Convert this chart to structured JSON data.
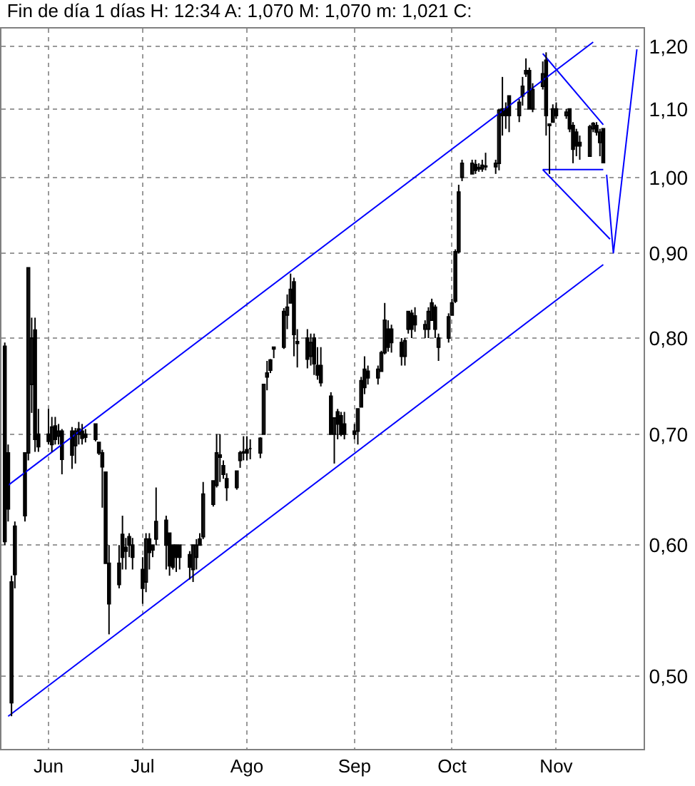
{
  "chart_data": {
    "type": "candlestick",
    "title": "Fin de día 1 días H: 12:34 A: 1,070 M: 1,070 m: 1,021 C:",
    "color": "#000000",
    "x": [
      "--05-21",
      "--05-22",
      "--05-23",
      "--05-24",
      "--05-27",
      "--05-28",
      "--05-29",
      "--05-30",
      "--05-31",
      "--06-03",
      "--06-04",
      "--06-05",
      "--06-06",
      "--06-07",
      "--06-10",
      "--06-11",
      "--06-12",
      "--06-13",
      "--06-14",
      "--06-17",
      "--06-18",
      "--06-19",
      "--06-20",
      "--06-21",
      "--06-24",
      "--06-25",
      "--06-26",
      "--06-27",
      "--06-28",
      "--07-01",
      "--07-02",
      "--07-03",
      "--07-04",
      "--07-05",
      "--07-08",
      "--07-09",
      "--07-10",
      "--07-11",
      "--07-12",
      "--07-15",
      "--07-16",
      "--07-17",
      "--07-18",
      "--07-19",
      "--07-22",
      "--07-23",
      "--07-24",
      "--07-25",
      "--07-26",
      "--07-29",
      "--07-30",
      "--07-31",
      "--08-01",
      "--08-02",
      "--08-05",
      "--08-06",
      "--08-07",
      "--08-08",
      "--08-09",
      "--08-12",
      "--08-13",
      "--08-14",
      "--08-15",
      "--08-16",
      "--08-19",
      "--08-20",
      "--08-21",
      "--08-22",
      "--08-23",
      "--08-26",
      "--08-27",
      "--08-28",
      "--08-29",
      "--08-30",
      "--09-02",
      "--09-03",
      "--09-04",
      "--09-05",
      "--09-06",
      "--09-09",
      "--09-10",
      "--09-11",
      "--09-12",
      "--09-13",
      "--09-16",
      "--09-17",
      "--09-18",
      "--09-19",
      "--09-20",
      "--09-23",
      "--09-24",
      "--09-25",
      "--09-26",
      "--09-27",
      "--09-30",
      "--10-01",
      "--10-02",
      "--10-03",
      "--10-04",
      "--10-07",
      "--10-08",
      "--10-09",
      "--10-10",
      "--10-11",
      "--10-14",
      "--10-15",
      "--10-16",
      "--10-17",
      "--10-18",
      "--10-21",
      "--10-22",
      "--10-23",
      "--10-24",
      "--10-25",
      "--10-28",
      "--10-29",
      "--10-30",
      "--10-31",
      "--11-01",
      "--11-04",
      "--11-05",
      "--11-06",
      "--11-07",
      "--11-08",
      "--11-11",
      "--11-12",
      "--11-13",
      "--11-14",
      "--11-15"
    ],
    "ohlc": [
      [
        0.791,
        0.795,
        0.6,
        0.603
      ],
      [
        0.682,
        0.69,
        0.62,
        0.631
      ],
      [
        0.482,
        0.575,
        0.473,
        0.57
      ],
      [
        0.576,
        0.62,
        0.565,
        0.616
      ],
      [
        0.625,
        0.682,
        0.62,
        0.682
      ],
      [
        0.682,
        0.882,
        0.675,
        0.882
      ],
      [
        0.75,
        0.823,
        0.721,
        0.8
      ],
      [
        0.809,
        0.823,
        0.683,
        0.695
      ],
      [
        0.7,
        0.725,
        0.683,
        0.688
      ],
      [
        0.7,
        0.725,
        0.69,
        0.693
      ],
      [
        0.69,
        0.717,
        0.683,
        0.707
      ],
      [
        0.708,
        0.717,
        0.69,
        0.695
      ],
      [
        0.698,
        0.71,
        0.69,
        0.703
      ],
      [
        0.703,
        0.705,
        0.662,
        0.676
      ],
      [
        0.68,
        0.707,
        0.667,
        0.703
      ],
      [
        0.689,
        0.706,
        0.672,
        0.703
      ],
      [
        0.705,
        0.712,
        0.69,
        0.7
      ],
      [
        0.696,
        0.71,
        0.69,
        0.703
      ],
      [
        0.7,
        0.705,
        0.692,
        0.697
      ],
      [
        0.695,
        0.71,
        0.693,
        0.71
      ],
      [
        0.692,
        0.692,
        0.68,
        0.682
      ],
      [
        0.682,
        0.685,
        0.632,
        0.669
      ],
      [
        0.664,
        0.664,
        0.585,
        0.585
      ],
      [
        0.585,
        0.6,
        0.53,
        0.553
      ],
      [
        0.568,
        0.6,
        0.565,
        0.585
      ],
      [
        0.609,
        0.625,
        0.58,
        0.59
      ],
      [
        0.598,
        0.606,
        0.58,
        0.595
      ],
      [
        0.607,
        0.61,
        0.59,
        0.6
      ],
      [
        0.6,
        0.606,
        0.58,
        0.59
      ],
      [
        0.58,
        0.59,
        0.553,
        0.565
      ],
      [
        0.57,
        0.61,
        0.562,
        0.605
      ],
      [
        0.605,
        0.61,
        0.58,
        0.594
      ],
      [
        0.596,
        0.6,
        0.59,
        0.6
      ],
      [
        0.605,
        0.65,
        0.6,
        0.62
      ],
      [
        0.621,
        0.625,
        0.58,
        0.6
      ],
      [
        0.61,
        0.61,
        0.575,
        0.583
      ],
      [
        0.6,
        0.6,
        0.58,
        0.582
      ],
      [
        0.59,
        0.6,
        0.578,
        0.6
      ],
      [
        0.6,
        0.6,
        0.58,
        0.59
      ],
      [
        0.592,
        0.595,
        0.572,
        0.582
      ],
      [
        0.58,
        0.6,
        0.57,
        0.6
      ],
      [
        0.59,
        0.605,
        0.58,
        0.6
      ],
      [
        0.6,
        0.61,
        0.6,
        0.605
      ],
      [
        0.607,
        0.655,
        0.605,
        0.644
      ],
      [
        0.635,
        0.656,
        0.633,
        0.656
      ],
      [
        0.652,
        0.7,
        0.65,
        0.682
      ],
      [
        0.68,
        0.7,
        0.655,
        0.678
      ],
      [
        0.67,
        0.675,
        0.658,
        0.662
      ],
      [
        0.658,
        0.663,
        0.638,
        0.65
      ],
      [
        0.65,
        0.665,
        0.648,
        0.665
      ],
      [
        0.675,
        0.684,
        0.668,
        0.682
      ],
      [
        0.682,
        0.698,
        0.675,
        0.683
      ],
      [
        0.685,
        0.698,
        0.675,
        0.682
      ],
      [
        0.686,
        0.695,
        0.676,
        0.686
      ],
      [
        0.682,
        0.697,
        0.677,
        0.696
      ],
      [
        0.7,
        0.75,
        0.7,
        0.75
      ],
      [
        0.758,
        0.775,
        0.744,
        0.762
      ],
      [
        0.765,
        0.777,
        0.762,
        0.776
      ],
      [
        0.788,
        0.79,
        0.778,
        0.79
      ],
      [
        0.79,
        0.834,
        0.788,
        0.83
      ],
      [
        0.826,
        0.85,
        0.81,
        0.835
      ],
      [
        0.84,
        0.875,
        0.84,
        0.856
      ],
      [
        0.865,
        0.87,
        0.78,
        0.804
      ],
      [
        0.794,
        0.81,
        0.768,
        0.796
      ],
      [
        0.8,
        0.81,
        0.767,
        0.777
      ],
      [
        0.78,
        0.805,
        0.77,
        0.795
      ],
      [
        0.8,
        0.805,
        0.76,
        0.772
      ],
      [
        0.77,
        0.79,
        0.755,
        0.76
      ],
      [
        0.77,
        0.79,
        0.748,
        0.752
      ],
      [
        0.738,
        0.742,
        0.7,
        0.7
      ],
      [
        0.7,
        0.716,
        0.672,
        0.716
      ],
      [
        0.722,
        0.725,
        0.695,
        0.71
      ],
      [
        0.718,
        0.722,
        0.698,
        0.7
      ],
      [
        0.71,
        0.722,
        0.695,
        0.7
      ],
      [
        0.703,
        0.71,
        0.695,
        0.7
      ],
      [
        0.703,
        0.725,
        0.69,
        0.725
      ],
      [
        0.727,
        0.758,
        0.727,
        0.754
      ],
      [
        0.747,
        0.78,
        0.74,
        0.766
      ],
      [
        0.764,
        0.77,
        0.75,
        0.757
      ],
      [
        0.757,
        0.77,
        0.75,
        0.766
      ],
      [
        0.764,
        0.786,
        0.764,
        0.784
      ],
      [
        0.784,
        0.84,
        0.782,
        0.82
      ],
      [
        0.81,
        0.82,
        0.785,
        0.79
      ],
      [
        0.81,
        0.815,
        0.784,
        0.795
      ],
      [
        0.795,
        0.8,
        0.77,
        0.78
      ],
      [
        0.78,
        0.8,
        0.77,
        0.797
      ],
      [
        0.81,
        0.83,
        0.805,
        0.83
      ],
      [
        0.828,
        0.832,
        0.8,
        0.81
      ],
      [
        0.825,
        0.835,
        0.807,
        0.815
      ],
      [
        0.81,
        0.82,
        0.8,
        0.815
      ],
      [
        0.81,
        0.835,
        0.8,
        0.83
      ],
      [
        0.82,
        0.845,
        0.82,
        0.84
      ],
      [
        0.835,
        0.838,
        0.8,
        0.81
      ],
      [
        0.79,
        0.805,
        0.775,
        0.8
      ],
      [
        0.8,
        0.828,
        0.795,
        0.824
      ],
      [
        0.826,
        0.845,
        0.826,
        0.84
      ],
      [
        0.842,
        0.905,
        0.84,
        0.902
      ],
      [
        0.902,
        0.99,
        0.9,
        0.98
      ],
      [
        1.0,
        1.025,
        0.995,
        1.02
      ],
      [
        1.005,
        1.025,
        1.005,
        1.02
      ],
      [
        1.018,
        1.025,
        1.005,
        1.01
      ],
      [
        1.012,
        1.02,
        1.008,
        1.014
      ],
      [
        1.012,
        1.025,
        1.008,
        1.017
      ],
      [
        1.015,
        1.035,
        1.01,
        1.016
      ],
      [
        1.015,
        1.025,
        1.005,
        1.02
      ],
      [
        1.02,
        1.1,
        1.01,
        1.098
      ],
      [
        1.09,
        1.15,
        1.06,
        1.1
      ],
      [
        1.1,
        1.11,
        1.07,
        1.09
      ],
      [
        1.12,
        1.12,
        1.065,
        1.09
      ],
      [
        1.09,
        1.115,
        1.08,
        1.11
      ],
      [
        1.12,
        1.15,
        1.105,
        1.135
      ],
      [
        1.155,
        1.18,
        1.15,
        1.16
      ],
      [
        1.16,
        1.165,
        1.1,
        1.1
      ],
      [
        1.1,
        1.14,
        1.095,
        1.13
      ],
      [
        1.135,
        1.175,
        1.13,
        1.155
      ],
      [
        1.177,
        1.19,
        1.06,
        1.09
      ],
      [
        1.077,
        1.077,
        1.005,
        1.075
      ],
      [
        1.08,
        1.107,
        1.08,
        1.1
      ],
      [
        1.1,
        1.11,
        1.085,
        1.09
      ],
      [
        1.09,
        1.1,
        1.085,
        1.095
      ],
      [
        1.1,
        1.1,
        1.065,
        1.07
      ],
      [
        1.075,
        1.08,
        1.02,
        1.04
      ],
      [
        1.065,
        1.07,
        1.03,
        1.045
      ],
      [
        1.05,
        1.06,
        1.025,
        1.045
      ],
      [
        1.03,
        1.076,
        1.03,
        1.073
      ],
      [
        1.07,
        1.08,
        1.065,
        1.078
      ],
      [
        1.075,
        1.08,
        1.06,
        1.065
      ],
      [
        1.05,
        1.07,
        1.03,
        1.065
      ],
      [
        1.07,
        1.07,
        1.021,
        1.021
      ]
    ],
    "series": [
      {
        "type": "line",
        "color": "#0000ff",
        "x": [
          "--05-22",
          "--11-12"
        ],
        "values": [
          0.652,
          1.207
        ]
      },
      {
        "type": "line",
        "color": "#0000ff",
        "x": [
          "--05-22",
          "--11-15"
        ],
        "values": [
          0.473,
          0.886
        ]
      },
      {
        "type": "line",
        "color": "#0000ff",
        "x": [
          "--10-28",
          "--11-15"
        ],
        "values": [
          1.188,
          1.076
        ]
      },
      {
        "type": "line",
        "color": "#0000ff",
        "x": [
          "--10-28",
          "--11-15"
        ],
        "values": [
          1.011,
          1.011
        ]
      },
      {
        "type": "line",
        "color": "#0000ff",
        "x": [
          "--10-28",
          "--11-17"
        ],
        "values": [
          1.011,
          0.918
        ]
      },
      {
        "type": "line",
        "color": "#0000ff",
        "x": [
          "--11-16",
          "--11-18",
          "--11-25"
        ],
        "values": [
          1.004,
          0.9,
          1.195
        ]
      }
    ],
    "log": "y",
    "xlim": [
      "--05-20",
      "--11-27"
    ],
    "ylim": [
      0.452,
      1.23
    ],
    "xticks": [
      {
        "value": "--06-03",
        "label": "Jun"
      },
      {
        "value": "--07-01",
        "label": "Jul"
      },
      {
        "value": "--08-01",
        "label": "Ago"
      },
      {
        "value": "--09-02",
        "label": "Sep"
      },
      {
        "value": "--10-01",
        "label": "Oct"
      },
      {
        "value": "--11-01",
        "label": "Nov"
      }
    ],
    "yticks": [
      {
        "value": 0.5,
        "label": "0,50"
      },
      {
        "value": 0.6,
        "label": "0,60"
      },
      {
        "value": 0.7,
        "label": "0,70"
      },
      {
        "value": 0.8,
        "label": "0,80"
      },
      {
        "value": 0.9,
        "label": "0,90"
      },
      {
        "value": 1.0,
        "label": "1,00"
      },
      {
        "value": 1.1,
        "label": "1,10"
      },
      {
        "value": 1.2,
        "label": "1,20"
      }
    ],
    "grid": true,
    "marker": "none",
    "line_style": "solid"
  }
}
